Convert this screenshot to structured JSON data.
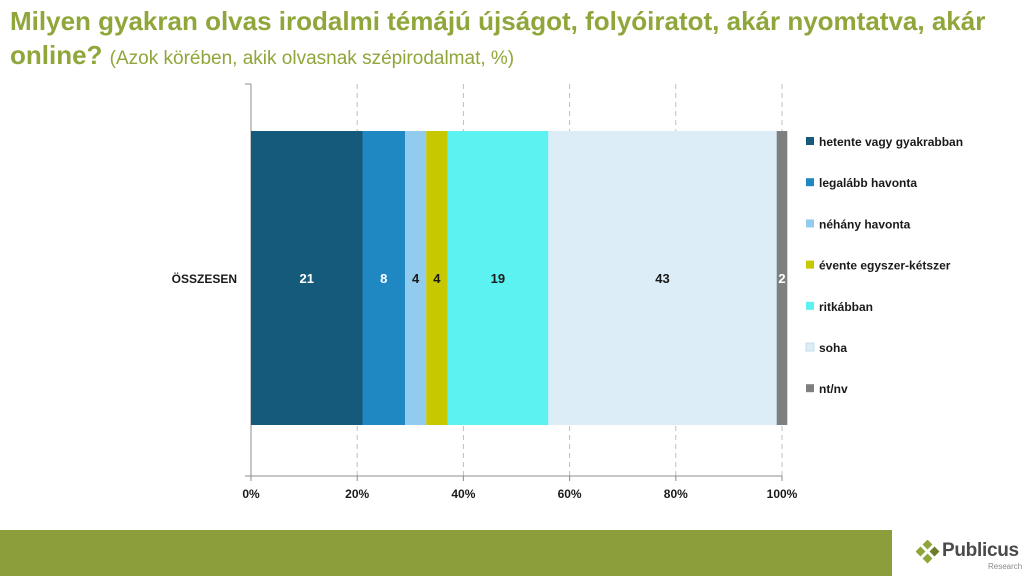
{
  "title": {
    "main": "Milyen gyakran olvas irodalmi témájú újságot, folyóiratot, akár nyomtatva, akár online?",
    "subtitle": "(Azok körében, akik olvasnak szépirodalmat, %)"
  },
  "chart_data": {
    "type": "bar",
    "orientation": "horizontal",
    "stacked": true,
    "percent_stacked": true,
    "categories": [
      "ÖSSZESEN"
    ],
    "series": [
      {
        "name": "hetente vagy gyakrabban",
        "values": [
          21
        ],
        "color": "#155a7b",
        "label_color": "#ffffff"
      },
      {
        "name": "legalább havonta",
        "values": [
          8
        ],
        "color": "#1f87c2",
        "label_color": "#ffffff"
      },
      {
        "name": "néhány havonta",
        "values": [
          4
        ],
        "color": "#91ccee",
        "label_color": "#1a1a1a"
      },
      {
        "name": "évente egyszer-kétszer",
        "values": [
          4
        ],
        "color": "#c8c800",
        "label_color": "#1a1a1a"
      },
      {
        "name": "ritkábban",
        "values": [
          19
        ],
        "color": "#5cf2f2",
        "label_color": "#1a1a1a"
      },
      {
        "name": "soha",
        "values": [
          43
        ],
        "color": "#dcedf7",
        "label_color": "#1a1a1a"
      },
      {
        "name": "nt/nv",
        "values": [
          2
        ],
        "color": "#7f7f7f",
        "label_color": "#ffffff"
      }
    ],
    "xlim": [
      0,
      100
    ],
    "xticks": [
      "0%",
      "20%",
      "40%",
      "60%",
      "80%",
      "100%"
    ],
    "grid": true,
    "legend_position": "right"
  },
  "brand": {
    "name": "Publicus",
    "sub": "Research",
    "footer_color": "#8c9e3c",
    "title_color": "#8ea63a"
  }
}
